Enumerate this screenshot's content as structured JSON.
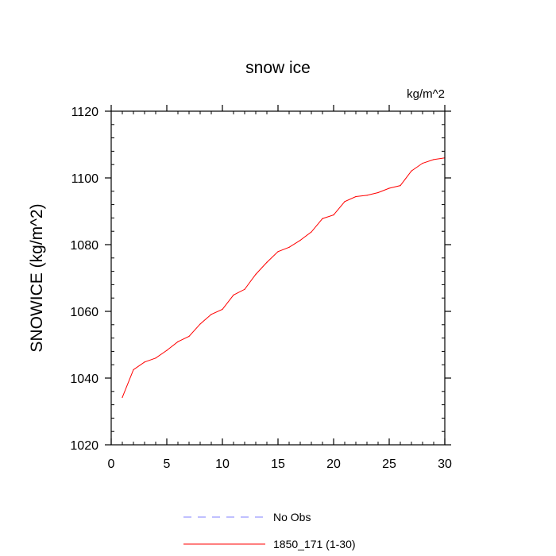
{
  "chart_data": {
    "type": "line",
    "title": "snow ice",
    "units_label": "kg/m^2",
    "xlabel": "",
    "ylabel": "SNOWICE  (kg/m^2)",
    "xlim": [
      0,
      30
    ],
    "ylim": [
      1020,
      1120
    ],
    "x_ticks": [
      0,
      5,
      10,
      15,
      20,
      25,
      30
    ],
    "y_ticks": [
      1020,
      1040,
      1060,
      1080,
      1100,
      1120
    ],
    "x_minor_step": 1,
    "y_minor_step": 4,
    "grid": false,
    "legend_position": "bottom",
    "series": [
      {
        "name": "1850_171 (1-30)",
        "color": "#ff0000",
        "dash": "solid",
        "x": [
          1,
          2,
          3,
          4,
          5,
          6,
          7,
          8,
          9,
          10,
          11,
          12,
          13,
          14,
          15,
          16,
          17,
          18,
          19,
          20,
          21,
          22,
          23,
          24,
          25,
          26,
          27,
          28,
          29,
          30
        ],
        "y": [
          1034.2,
          1042.5,
          1044.8,
          1046.0,
          1048.3,
          1050.9,
          1052.5,
          1056.2,
          1059.1,
          1060.6,
          1064.9,
          1066.6,
          1071.1,
          1074.7,
          1077.9,
          1079.2,
          1081.3,
          1083.8,
          1087.8,
          1088.9,
          1092.9,
          1094.4,
          1094.8,
          1095.6,
          1096.9,
          1097.7,
          1102.1,
          1104.4,
          1105.5,
          1106.0
        ]
      }
    ],
    "legend": [
      {
        "label": "No Obs",
        "color": "#8080ff",
        "dash": "dashed"
      },
      {
        "label": "1850_171 (1-30)",
        "color": "#ff0000",
        "dash": "solid"
      }
    ]
  }
}
